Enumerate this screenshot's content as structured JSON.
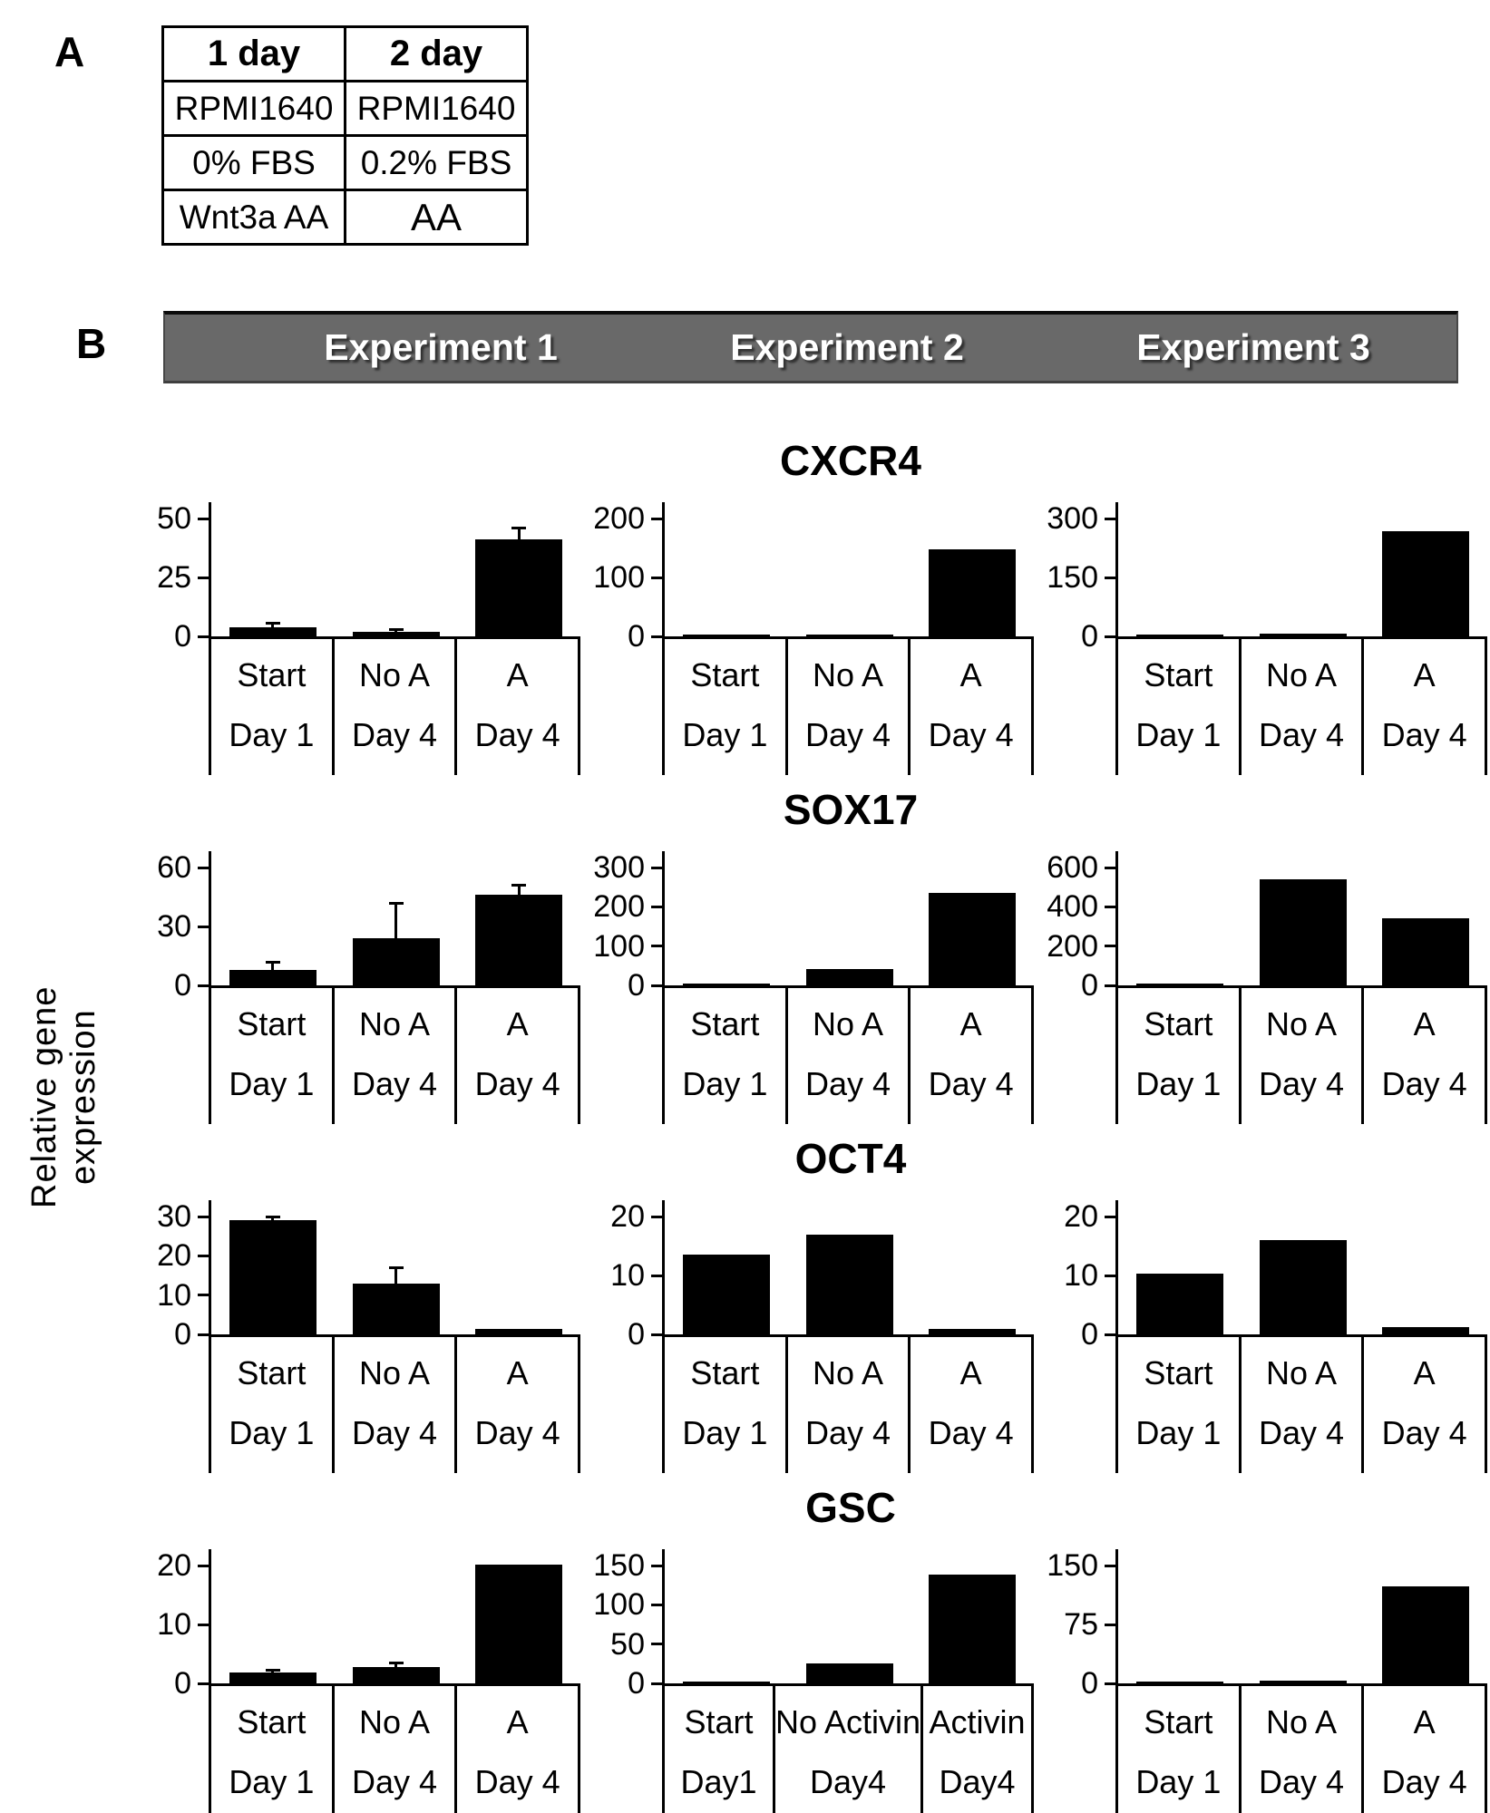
{
  "panel_a": {
    "label": "A",
    "table": {
      "headers": [
        "1 day",
        "2 day"
      ],
      "rows": [
        [
          "RPMI1640",
          "RPMI1640"
        ],
        [
          "0% FBS",
          "0.2% FBS"
        ],
        [
          "Wnt3a AA",
          "AA"
        ]
      ]
    }
  },
  "panel_b": {
    "label": "B",
    "experiment_headers": [
      "Experiment 1",
      "Experiment 2",
      "Experiment 3"
    ],
    "y_axis_label": "Relative gene expression",
    "header_bg_color": "#696969",
    "bar_color": "#000000"
  },
  "chart_data": [
    {
      "type": "bar",
      "gene": "CXCR4",
      "ylabel": "Relative gene expression",
      "experiments": [
        {
          "experiment": "Experiment 1",
          "ylim": [
            0,
            50
          ],
          "yticks": [
            0,
            25,
            50
          ],
          "categories": [
            "Start",
            "No A",
            "A"
          ],
          "days": [
            "Day 1",
            "Day 4",
            "Day 4"
          ],
          "values": [
            4,
            2,
            41
          ],
          "errors": [
            1.5,
            1,
            5
          ]
        },
        {
          "experiment": "Experiment 2",
          "ylim": [
            0,
            200
          ],
          "yticks": [
            0,
            100,
            200
          ],
          "categories": [
            "Start",
            "No A",
            "A"
          ],
          "days": [
            "Day 1",
            "Day 4",
            "Day 4"
          ],
          "values": [
            2,
            1,
            148
          ],
          "errors": [
            0,
            0,
            0
          ]
        },
        {
          "experiment": "Experiment 3",
          "ylim": [
            0,
            300
          ],
          "yticks": [
            0,
            150,
            300
          ],
          "categories": [
            "Start",
            "No A",
            "A"
          ],
          "days": [
            "Day 1",
            "Day 4",
            "Day 4"
          ],
          "values": [
            2,
            6,
            268
          ],
          "errors": [
            0,
            0,
            0
          ]
        }
      ]
    },
    {
      "type": "bar",
      "gene": "SOX17",
      "ylabel": "Relative gene expression",
      "experiments": [
        {
          "experiment": "Experiment 1",
          "ylim": [
            0,
            60
          ],
          "yticks": [
            0,
            30,
            60
          ],
          "categories": [
            "Start",
            "No A",
            "A"
          ],
          "days": [
            "Day 1",
            "Day 4",
            "Day 4"
          ],
          "values": [
            8,
            24,
            46
          ],
          "errors": [
            4,
            18,
            5
          ]
        },
        {
          "experiment": "Experiment 2",
          "ylim": [
            0,
            300
          ],
          "yticks": [
            0,
            100,
            200,
            300
          ],
          "categories": [
            "Start",
            "No A",
            "A"
          ],
          "days": [
            "Day 1",
            "Day 4",
            "Day 4"
          ],
          "values": [
            1,
            42,
            235
          ],
          "errors": [
            0,
            0,
            0
          ]
        },
        {
          "experiment": "Experiment 3",
          "ylim": [
            0,
            600
          ],
          "yticks": [
            0,
            200,
            400,
            600
          ],
          "categories": [
            "Start",
            "No A",
            "A"
          ],
          "days": [
            "Day 1",
            "Day 4",
            "Day 4"
          ],
          "values": [
            2,
            540,
            340
          ],
          "errors": [
            0,
            0,
            0
          ]
        }
      ]
    },
    {
      "type": "bar",
      "gene": "OCT4",
      "ylabel": "Relative gene expression",
      "experiments": [
        {
          "experiment": "Experiment 1",
          "ylim": [
            0,
            30
          ],
          "yticks": [
            0,
            10,
            20,
            30
          ],
          "categories": [
            "Start",
            "No A",
            "A"
          ],
          "days": [
            "Day 1",
            "Day 4",
            "Day 4"
          ],
          "values": [
            29,
            13,
            1.5
          ],
          "errors": [
            1,
            4,
            0
          ]
        },
        {
          "experiment": "Experiment 2",
          "ylim": [
            0,
            20
          ],
          "yticks": [
            0,
            10,
            20
          ],
          "categories": [
            "Start",
            "No A",
            "A"
          ],
          "days": [
            "Day 1",
            "Day 4",
            "Day 4"
          ],
          "values": [
            13.5,
            17,
            1
          ],
          "errors": [
            0,
            0,
            0
          ]
        },
        {
          "experiment": "Experiment 3",
          "ylim": [
            0,
            20
          ],
          "yticks": [
            0,
            10,
            20
          ],
          "categories": [
            "Start",
            "No A",
            "A"
          ],
          "days": [
            "Day 1",
            "Day 4",
            "Day 4"
          ],
          "values": [
            10.3,
            16,
            1.3
          ],
          "errors": [
            0,
            0,
            0
          ]
        }
      ]
    },
    {
      "type": "bar",
      "gene": "GSC",
      "ylabel": "Relative gene expression",
      "experiments": [
        {
          "experiment": "Experiment 1",
          "ylim": [
            0,
            20
          ],
          "yticks": [
            0,
            10,
            20
          ],
          "categories": [
            "Start",
            "No A",
            "A"
          ],
          "days": [
            "Day 1",
            "Day 4",
            "Day 4"
          ],
          "values": [
            1.8,
            2.8,
            20.2
          ],
          "errors": [
            0.5,
            0.6,
            0
          ]
        },
        {
          "experiment": "Experiment 2",
          "ylim": [
            0,
            150
          ],
          "yticks": [
            0,
            50,
            100,
            150
          ],
          "categories": [
            "Start",
            "No Activin",
            "Activin"
          ],
          "days": [
            "Day1",
            "Day4",
            "Day4"
          ],
          "values": [
            0.5,
            25,
            139
          ],
          "errors": [
            0,
            0,
            0
          ]
        },
        {
          "experiment": "Experiment 3",
          "ylim": [
            0,
            150
          ],
          "yticks": [
            0,
            75,
            150
          ],
          "categories": [
            "Start",
            "No A",
            "A"
          ],
          "days": [
            "Day 1",
            "Day 4",
            "Day 4"
          ],
          "values": [
            0.5,
            4,
            123
          ],
          "errors": [
            0,
            0,
            0
          ]
        }
      ]
    }
  ]
}
